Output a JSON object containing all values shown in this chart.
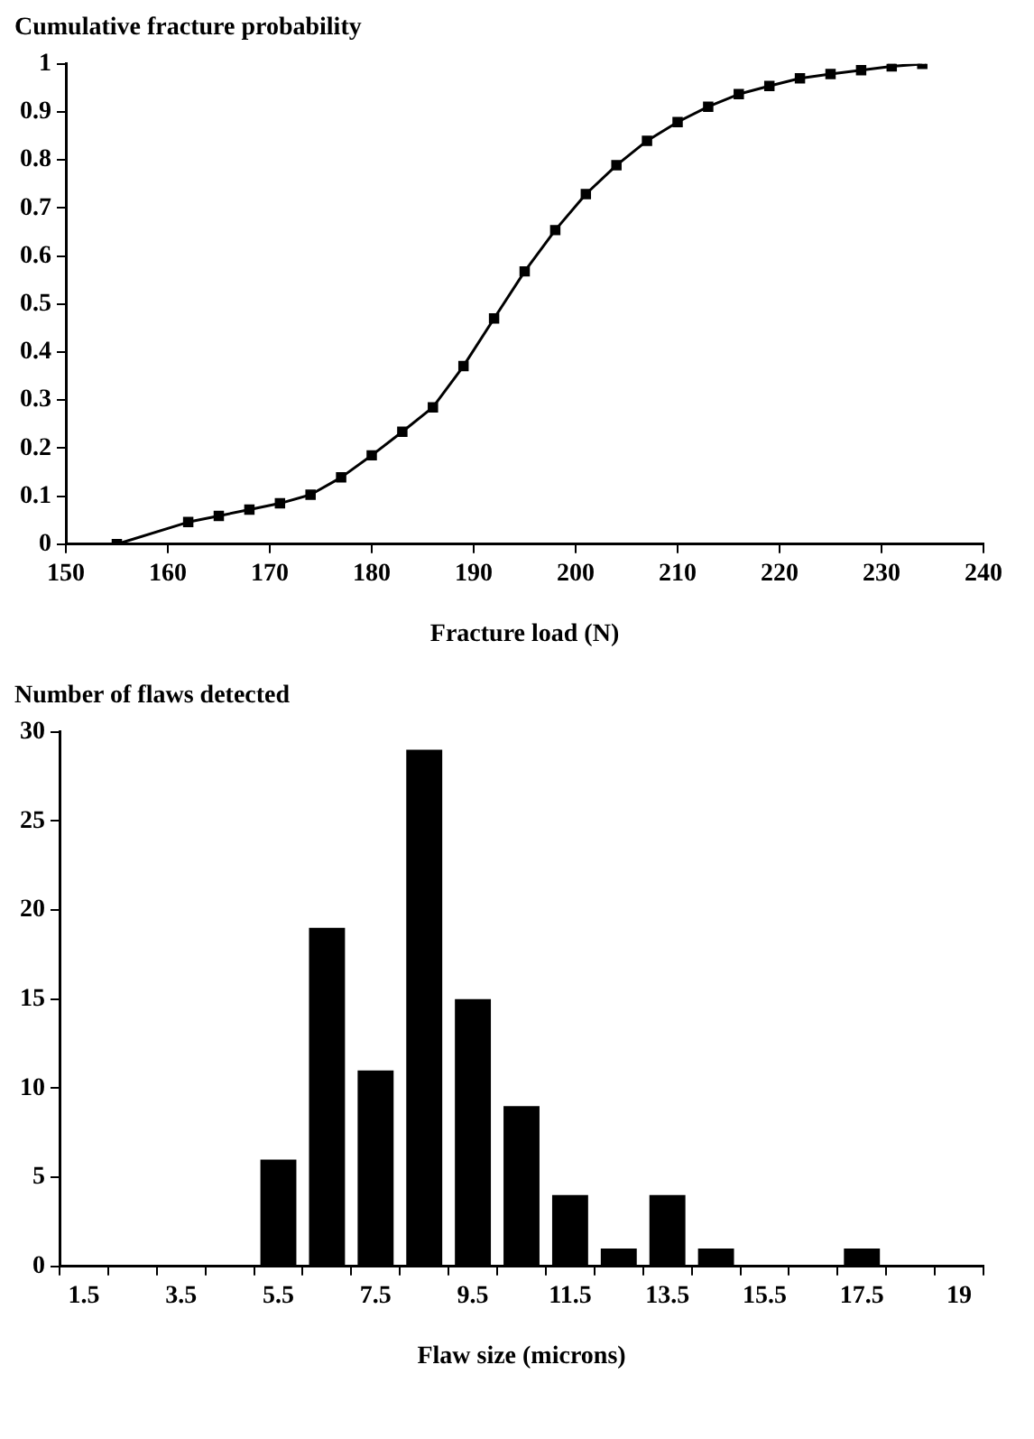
{
  "chart_data": [
    {
      "type": "line",
      "ylabel": "Cumulative fracture probability",
      "xlabel": "Fracture load (N)",
      "x": [
        155,
        162,
        165,
        168,
        171,
        174,
        177,
        180,
        183,
        186,
        189,
        192,
        195,
        198,
        201,
        204,
        207,
        210,
        213,
        216,
        219,
        222,
        225,
        228,
        231,
        234
      ],
      "series": [
        {
          "color": "#000000",
          "values": [
            0,
            0.046,
            0.059,
            0.072,
            0.085,
            0.103,
            0.139,
            0.185,
            0.234,
            0.285,
            0.371,
            0.47,
            0.568,
            0.654,
            0.729,
            0.789,
            0.84,
            0.879,
            0.911,
            0.937,
            0.954,
            0.97,
            0.979,
            0.987,
            0.995,
            1
          ]
        }
      ],
      "xlim": [
        150,
        240
      ],
      "xticks": [
        150,
        160,
        170,
        180,
        190,
        200,
        210,
        220,
        230,
        240
      ],
      "ylim": [
        0,
        1
      ],
      "yticks": [
        0,
        0.1,
        0.2,
        0.3,
        0.4,
        0.5,
        0.6,
        0.7,
        0.8,
        0.9,
        1
      ],
      "grid": false,
      "legend": false,
      "marker": "square",
      "line_style": "solid"
    },
    {
      "type": "bar",
      "ylabel": "Number of flaws detected",
      "xlabel": "Flaw size (microns)",
      "categories": [
        "1.5",
        null,
        "3.5",
        null,
        "5.5",
        null,
        "7.5",
        null,
        "9.5",
        null,
        "11.5",
        null,
        "13.5",
        null,
        "15.5",
        null,
        "17.5",
        null,
        "19"
      ],
      "series": [
        {
          "color": "#000000",
          "values": [
            0,
            0,
            0,
            0,
            6,
            19,
            11,
            29,
            15,
            9,
            4,
            1,
            4,
            1,
            0,
            0,
            1,
            0,
            0
          ]
        }
      ],
      "ylim": [
        0,
        30
      ],
      "yticks": [
        0,
        5,
        10,
        15,
        20,
        25,
        30
      ],
      "grid": false,
      "legend": false
    }
  ]
}
